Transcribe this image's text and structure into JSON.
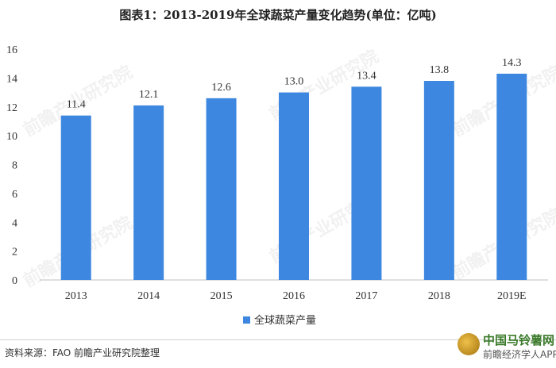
{
  "title": "图表1：2013-2019年全球蔬菜产量变化趋势(单位：亿吨)",
  "chart_data": {
    "type": "bar",
    "categories": [
      "2013",
      "2014",
      "2015",
      "2016",
      "2017",
      "2018",
      "2019E"
    ],
    "series": [
      {
        "name": "全球蔬菜产量",
        "values": [
          11.4,
          12.1,
          12.6,
          13.0,
          13.4,
          13.8,
          14.3
        ]
      }
    ],
    "ylim": [
      0,
      16
    ],
    "yticks": [
      0,
      2,
      4,
      6,
      8,
      10,
      12,
      14,
      16
    ],
    "data_labels": [
      "11.4",
      "12.1",
      "12.6",
      "13.0",
      "13.4",
      "13.8",
      "14.3"
    ],
    "grid": false,
    "legend_position": "bottom",
    "bar_color": "#3d87e0"
  },
  "source": "资料来源：FAO 前瞻产业研究院整理",
  "watermark": "前瞻产业研究院",
  "brand": {
    "name": "中国马铃薯网",
    "sub": "前瞻经济学人APP"
  }
}
